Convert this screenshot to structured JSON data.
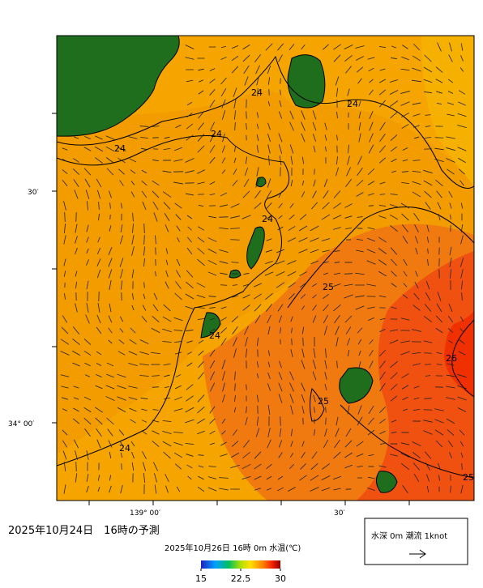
{
  "map": {
    "contour_labels": [
      "24",
      "24",
      "24",
      "24",
      "24",
      "25",
      "25",
      "26",
      "25",
      "24",
      "24"
    ],
    "lat_labels": [
      "30′",
      "34° 00′"
    ],
    "lon_labels": [
      "139° 00′",
      "30′"
    ],
    "title": "2025年10月24日　16時の予測",
    "colorbar": {
      "title": "2025年10月26日 16時 0m 水温(℃)",
      "range": [
        15,
        30
      ],
      "ticks": [
        15,
        {
          "value": 22.5,
          "label": "22.5"
        },
        30
      ]
    },
    "legend": "水深 0m 潮流 1knot"
  }
}
